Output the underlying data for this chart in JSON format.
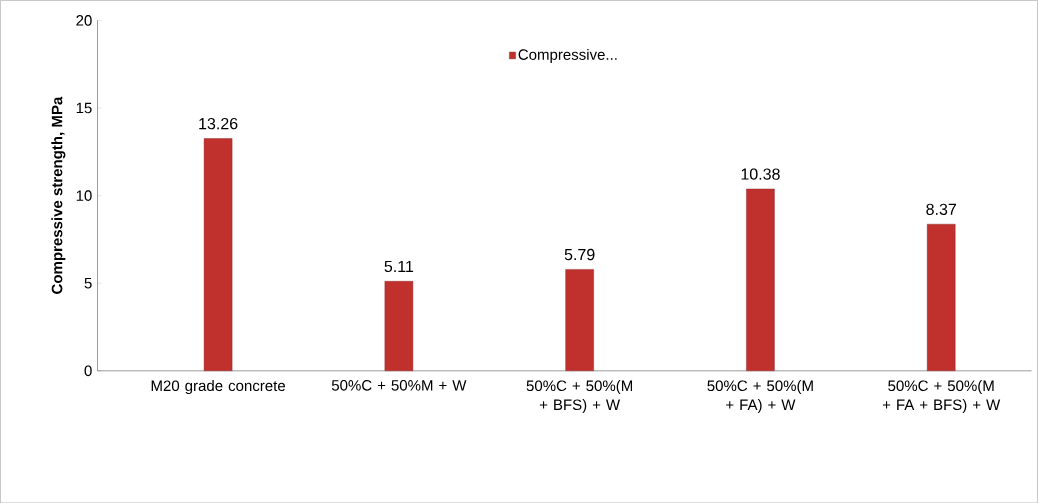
{
  "chart_data": {
    "type": "bar",
    "ylabel": "Compressive strength, MPa",
    "categories": [
      "M20 grade concrete",
      "50%C + 50%M + W",
      "50%C + 50%(M + BFS) + W",
      "50%C + 50%(M + FA) + W",
      "50%C + 50%(M + FA + BFS) + W"
    ],
    "series": [
      {
        "name": "Compressive...",
        "color": "#c0312e",
        "values": [
          13.26,
          5.11,
          5.79,
          10.38,
          8.37
        ]
      }
    ],
    "ylim": [
      0,
      20
    ],
    "yticks": [
      0,
      5,
      10,
      15,
      20
    ],
    "data_labels": true,
    "legend": "top",
    "grid": false
  }
}
